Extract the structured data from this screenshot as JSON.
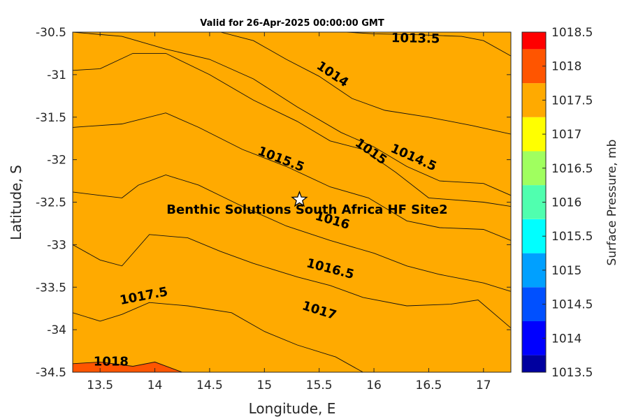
{
  "title": "Valid for 26-Apr-2025 00:00:00 GMT",
  "chart_data": {
    "type": "contour",
    "title": "Valid for 26-Apr-2025 00:00:00 GMT",
    "xlabel": "Longitude, E",
    "ylabel": "Latitude, S",
    "xlim": [
      13.25,
      17.25
    ],
    "ylim": [
      -34.5,
      -30.5
    ],
    "x_ticks": [
      "13.5",
      "14",
      "14.5",
      "15",
      "15.5",
      "16",
      "16.5",
      "17"
    ],
    "x_tick_values": [
      13.5,
      14,
      14.5,
      15,
      15.5,
      16,
      16.5,
      17
    ],
    "y_ticks": [
      "-30.5",
      "-31",
      "-31.5",
      "-32",
      "-32.5",
      "-33",
      "-33.5",
      "-34",
      "-34.5"
    ],
    "y_tick_values": [
      -30.5,
      -31,
      -31.5,
      -32,
      -32.5,
      -33,
      -33.5,
      -34,
      -34.5
    ],
    "colorbar": {
      "label": "Surface Pressure, mb",
      "ticks": [
        "1018.5",
        "1018",
        "1017.5",
        "1017",
        "1016.5",
        "1016",
        "1015.5",
        "1015",
        "1014.5",
        "1014",
        "1013.5"
      ],
      "levels": [
        {
          "from": 1013.5,
          "to": 1013.75,
          "color": "#00009f"
        },
        {
          "from": 1013.75,
          "to": 1014.25,
          "color": "#0000ff"
        },
        {
          "from": 1014.25,
          "to": 1014.75,
          "color": "#0050ff"
        },
        {
          "from": 1014.75,
          "to": 1015.25,
          "color": "#00a0ff"
        },
        {
          "from": 1015.25,
          "to": 1015.75,
          "color": "#00ffff"
        },
        {
          "from": 1015.75,
          "to": 1016.25,
          "color": "#50ffaf"
        },
        {
          "from": 1016.25,
          "to": 1016.75,
          "color": "#a0ff5f"
        },
        {
          "from": 1016.75,
          "to": 1017.25,
          "color": "#ffff00"
        },
        {
          "from": 1017.25,
          "to": 1017.75,
          "color": "#ffaa00"
        },
        {
          "from": 1017.75,
          "to": 1018.25,
          "color": "#ff5500"
        },
        {
          "from": 1018.25,
          "to": 1018.5,
          "color": "#ff0000"
        }
      ]
    },
    "contours": [
      {
        "level": 1013.5,
        "label": "1013.5",
        "points": [
          [
            15.75,
            -30.5
          ],
          [
            16.0,
            -30.52
          ],
          [
            16.4,
            -30.53
          ],
          [
            16.8,
            -30.55
          ],
          [
            17.0,
            -30.6
          ],
          [
            17.25,
            -30.78
          ]
        ],
        "label_at": [
          16.38,
          -30.58
        ]
      },
      {
        "level": 1014,
        "label": "1014",
        "points": [
          [
            14.6,
            -30.5
          ],
          [
            14.9,
            -30.6
          ],
          [
            15.2,
            -30.82
          ],
          [
            15.5,
            -31.02
          ],
          [
            15.8,
            -31.28
          ],
          [
            16.1,
            -31.42
          ],
          [
            16.5,
            -31.5
          ],
          [
            16.9,
            -31.6
          ],
          [
            17.25,
            -31.7
          ]
        ],
        "label_at": [
          15.62,
          -31.0
        ]
      },
      {
        "level": 1014.5,
        "label": "1014.5",
        "points": [
          [
            13.25,
            -30.5
          ],
          [
            13.7,
            -30.55
          ],
          [
            14.1,
            -30.7
          ],
          [
            14.5,
            -30.82
          ],
          [
            14.9,
            -31.05
          ],
          [
            15.3,
            -31.38
          ],
          [
            15.7,
            -31.68
          ],
          [
            16.0,
            -31.85
          ],
          [
            16.3,
            -32.08
          ],
          [
            16.6,
            -32.25
          ],
          [
            17.0,
            -32.28
          ],
          [
            17.25,
            -32.42
          ]
        ],
        "label_at": [
          16.36,
          -31.98
        ]
      },
      {
        "level": 1015,
        "label": "1015",
        "points": [
          [
            13.25,
            -30.95
          ],
          [
            13.5,
            -30.93
          ],
          [
            13.8,
            -30.75
          ],
          [
            14.1,
            -30.75
          ],
          [
            14.5,
            -31.0
          ],
          [
            14.9,
            -31.3
          ],
          [
            15.3,
            -31.55
          ],
          [
            15.6,
            -31.78
          ],
          [
            15.9,
            -31.88
          ],
          [
            16.2,
            -32.15
          ],
          [
            16.5,
            -32.45
          ],
          [
            17.0,
            -32.5
          ],
          [
            17.25,
            -32.55
          ]
        ],
        "label_at": [
          15.97,
          -31.91
        ]
      },
      {
        "level": 1015.5,
        "label": "1015.5",
        "points": [
          [
            13.25,
            -31.62
          ],
          [
            13.7,
            -31.58
          ],
          [
            14.1,
            -31.45
          ],
          [
            14.4,
            -31.62
          ],
          [
            14.8,
            -31.88
          ],
          [
            15.2,
            -32.08
          ],
          [
            15.6,
            -32.32
          ],
          [
            15.95,
            -32.45
          ],
          [
            16.3,
            -32.72
          ],
          [
            16.6,
            -32.8
          ],
          [
            17.0,
            -32.82
          ],
          [
            17.25,
            -32.95
          ]
        ],
        "label_at": [
          15.15,
          -32.0
        ]
      },
      {
        "level": 1016,
        "label": "1016",
        "points": [
          [
            13.25,
            -32.38
          ],
          [
            13.5,
            -32.42
          ],
          [
            13.7,
            -32.45
          ],
          [
            13.85,
            -32.3
          ],
          [
            14.1,
            -32.18
          ],
          [
            14.4,
            -32.3
          ],
          [
            14.8,
            -32.55
          ],
          [
            15.2,
            -32.78
          ],
          [
            15.6,
            -32.95
          ],
          [
            16.0,
            -33.1
          ],
          [
            16.3,
            -33.25
          ],
          [
            16.6,
            -33.35
          ],
          [
            17.0,
            -33.45
          ],
          [
            17.25,
            -33.55
          ]
        ],
        "label_at": [
          15.62,
          -32.72
        ]
      },
      {
        "level": 1016.5,
        "label": "1016.5",
        "points": [
          [
            13.25,
            -33.0
          ],
          [
            13.5,
            -33.18
          ],
          [
            13.7,
            -33.25
          ],
          [
            13.95,
            -32.88
          ],
          [
            14.3,
            -32.92
          ],
          [
            14.6,
            -33.08
          ],
          [
            14.9,
            -33.22
          ],
          [
            15.3,
            -33.38
          ],
          [
            15.6,
            -33.48
          ],
          [
            15.9,
            -33.62
          ],
          [
            16.3,
            -33.72
          ],
          [
            16.7,
            -33.7
          ],
          [
            16.95,
            -33.65
          ],
          [
            17.25,
            -33.98
          ]
        ],
        "label_at": [
          15.6,
          -33.29
        ]
      },
      {
        "level": 1017,
        "label": "1017",
        "points": [
          [
            13.25,
            -33.8
          ],
          [
            13.5,
            -33.9
          ],
          [
            13.7,
            -33.82
          ],
          [
            13.95,
            -33.68
          ],
          [
            14.3,
            -33.72
          ],
          [
            14.7,
            -33.8
          ],
          [
            15.0,
            -34.02
          ],
          [
            15.3,
            -34.18
          ],
          [
            15.65,
            -34.32
          ],
          [
            15.9,
            -34.5
          ]
        ],
        "label_at": [
          15.5,
          -33.78
        ]
      },
      {
        "level": 1017.5,
        "label": "1017.5",
        "points": [
          [
            13.25,
            -34.4
          ],
          [
            13.5,
            -34.38
          ],
          [
            13.8,
            -34.43
          ],
          [
            14.0,
            -34.38
          ],
          [
            14.25,
            -34.5
          ]
        ],
        "label_at": [
          13.9,
          -33.61
        ]
      },
      {
        "level": 1018,
        "label": "1018",
        "points": [],
        "label_at": [
          13.6,
          -34.38
        ]
      }
    ],
    "site": {
      "name": "Benthic Solutions South Africa HF Site2",
      "lon": 15.32,
      "lat": -32.47
    }
  }
}
